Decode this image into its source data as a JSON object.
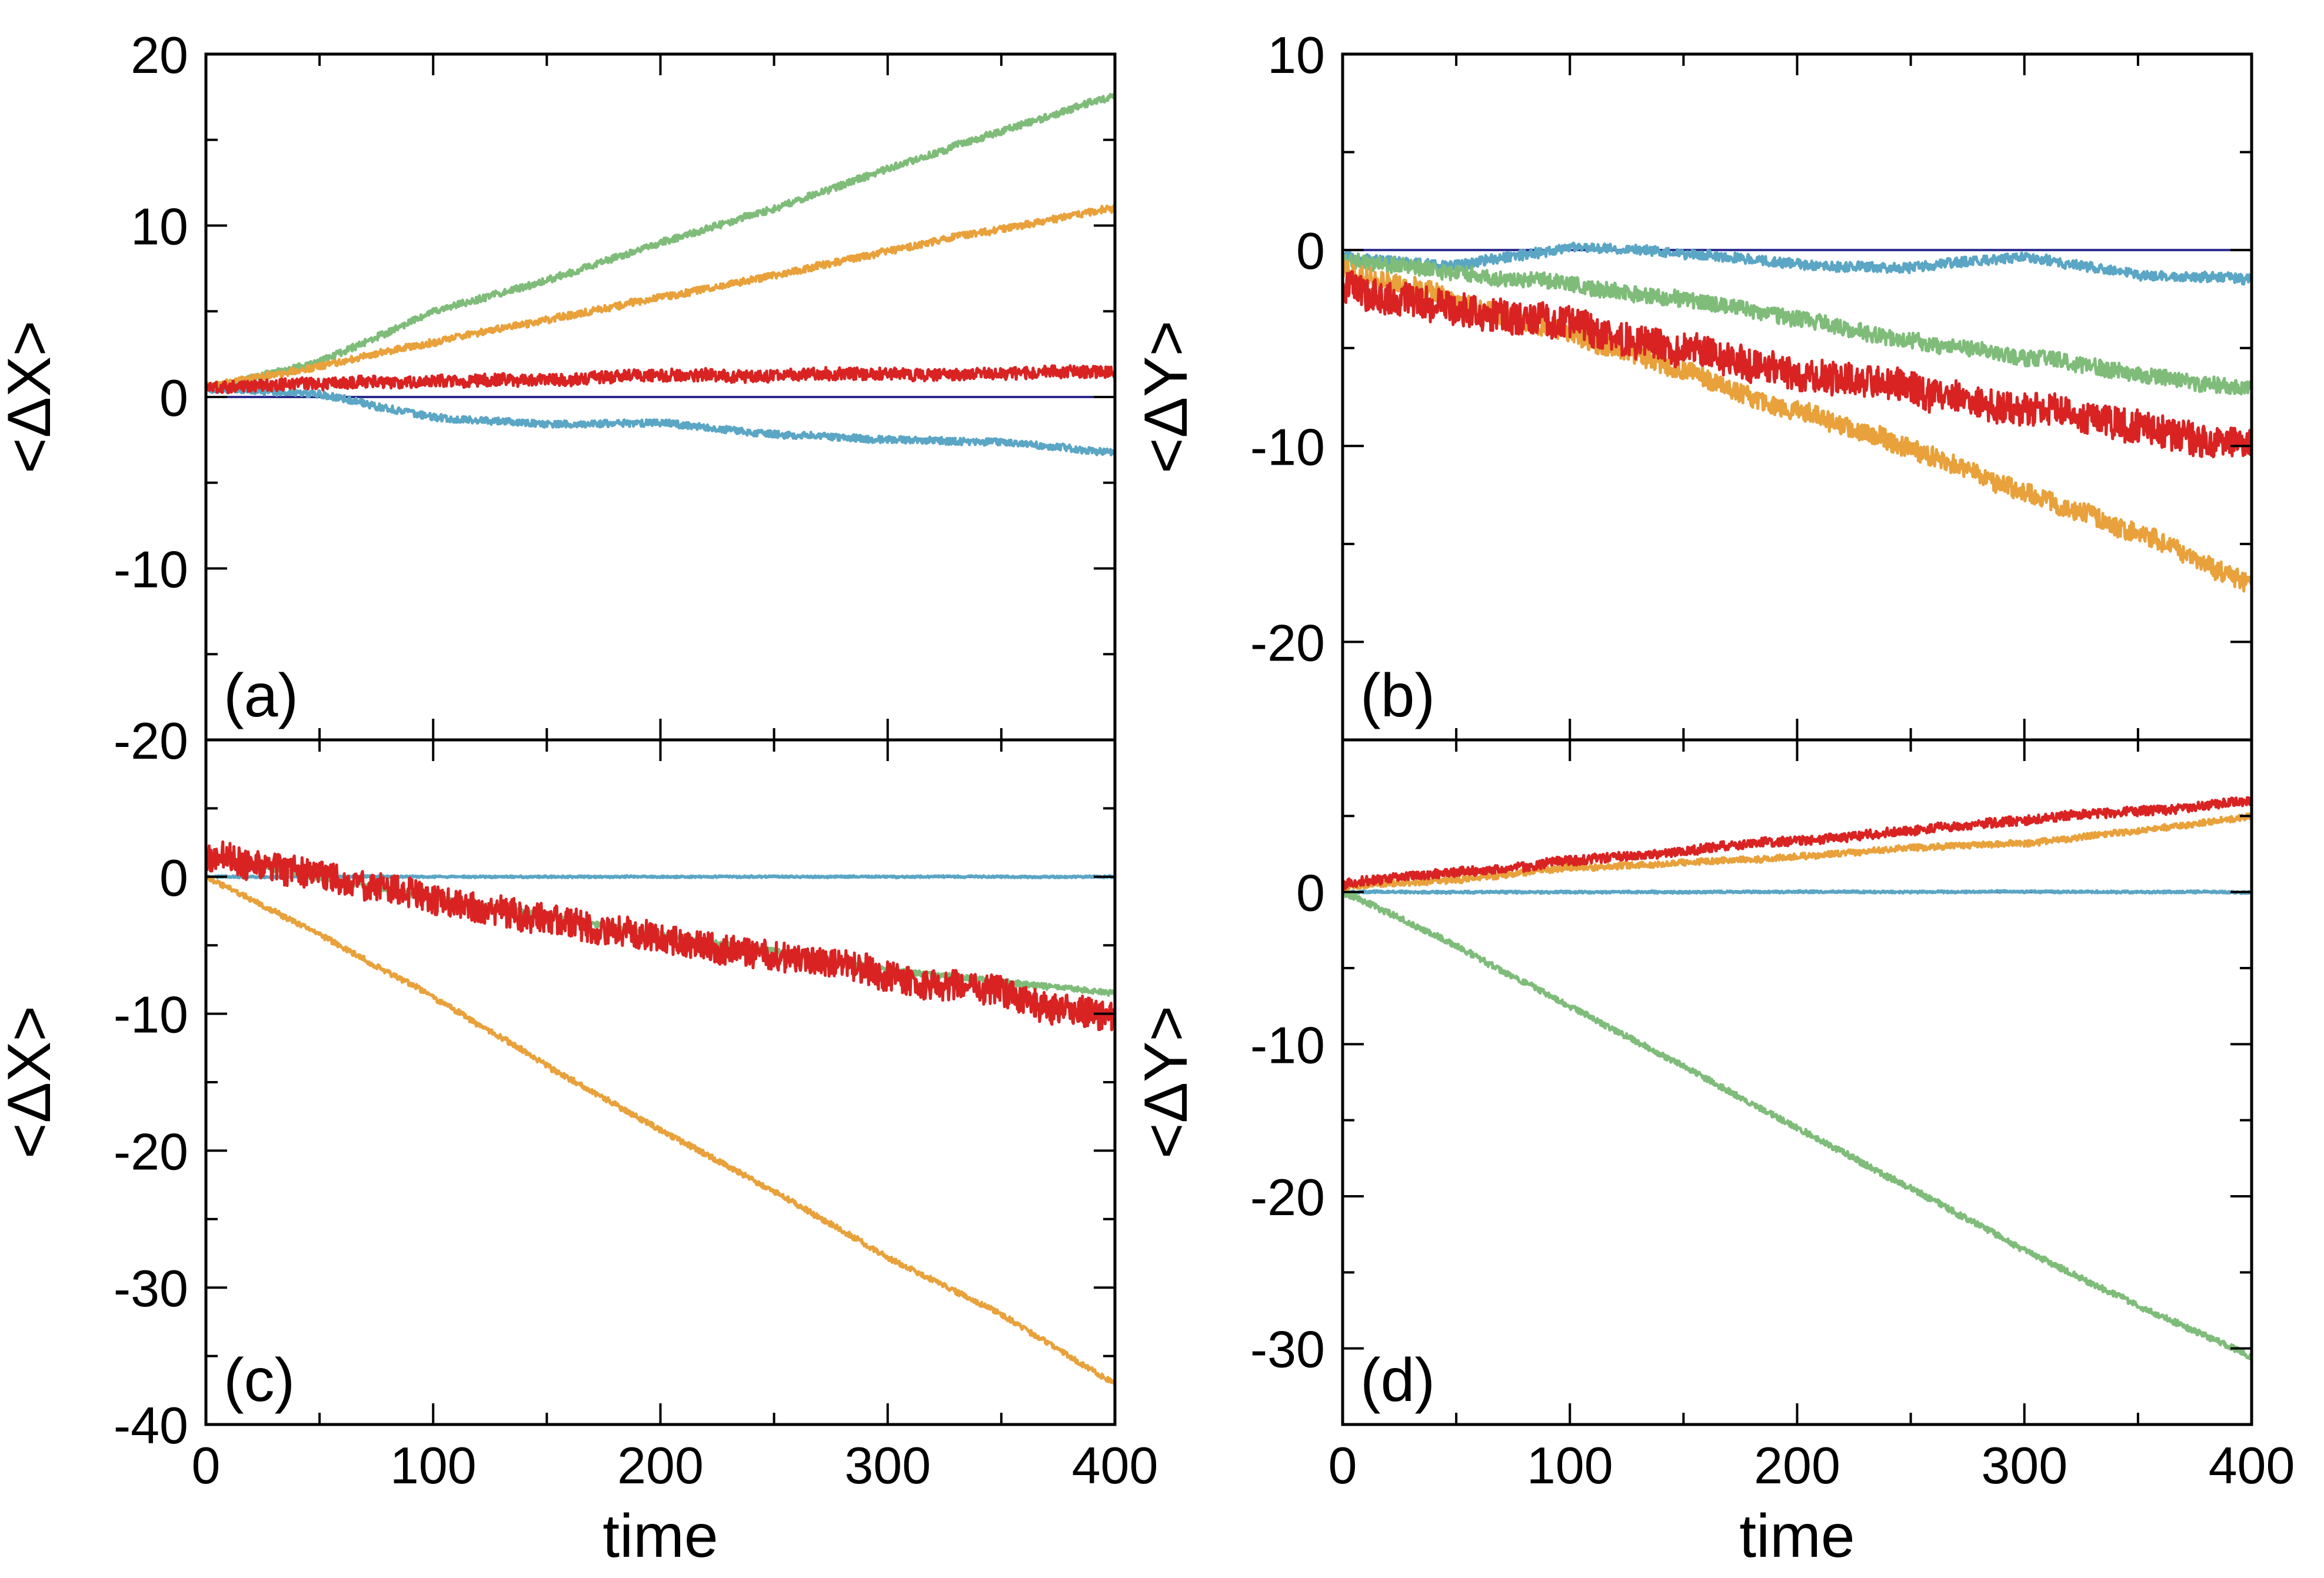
{
  "chart_data": [
    {
      "type": "line",
      "panel_label": "(a)",
      "xlabel": "",
      "ylabel": "<ΔX>",
      "xlim": [
        0,
        400
      ],
      "ylim": [
        -20,
        20
      ],
      "xticks": [
        "0",
        "100",
        "200",
        "300",
        "400"
      ],
      "yticks": [
        "-20",
        "-10",
        "0",
        "10",
        "20"
      ],
      "show_xtick_labels": false,
      "series": [
        {
          "name": "baseline",
          "color": "#2b2b8c",
          "noise": 0,
          "x": [
            0,
            400
          ],
          "y": [
            0,
            0
          ]
        },
        {
          "name": "blue",
          "color": "#5aa6c4",
          "noise": 0.4,
          "x": [
            0,
            50,
            100,
            150,
            200,
            250,
            300,
            350,
            400
          ],
          "y": [
            0.5,
            0.2,
            -1.2,
            -1.6,
            -1.5,
            -2.2,
            -2.5,
            -2.6,
            -3.2
          ]
        },
        {
          "name": "green",
          "color": "#7fbc7a",
          "noise": 0.4,
          "x": [
            0,
            50,
            100,
            150,
            200,
            250,
            300,
            350,
            400
          ],
          "y": [
            0.5,
            2.0,
            5.0,
            6.8,
            9.0,
            11.0,
            13.3,
            15.5,
            17.6
          ]
        },
        {
          "name": "orange",
          "color": "#e8a13b",
          "noise": 0.4,
          "x": [
            0,
            50,
            100,
            150,
            200,
            250,
            300,
            350,
            400
          ],
          "y": [
            0.6,
            1.8,
            3.2,
            4.5,
            5.8,
            7.1,
            8.5,
            9.8,
            11.0
          ]
        },
        {
          "name": "red",
          "color": "#d92323",
          "noise": 0.7,
          "x": [
            0,
            100,
            200,
            300,
            400
          ],
          "y": [
            0.6,
            0.9,
            1.2,
            1.4,
            1.5
          ]
        }
      ]
    },
    {
      "type": "line",
      "panel_label": "(b)",
      "xlabel": "",
      "ylabel": "<ΔY>",
      "xlim": [
        0,
        400
      ],
      "ylim": [
        -25,
        10
      ],
      "xticks": [
        "0",
        "100",
        "200",
        "300",
        "400"
      ],
      "yticks": [
        "-20",
        "-10",
        "0",
        "10"
      ],
      "show_xtick_labels": false,
      "series": [
        {
          "name": "baseline",
          "color": "#2b2b8c",
          "noise": 0,
          "x": [
            0,
            400
          ],
          "y": [
            0,
            0
          ]
        },
        {
          "name": "blue",
          "color": "#5aa6c4",
          "noise": 0.5,
          "x": [
            0,
            50,
            100,
            150,
            200,
            250,
            300,
            350,
            400
          ],
          "y": [
            -0.3,
            -0.8,
            0.1,
            -0.1,
            -0.8,
            -0.9,
            -0.3,
            -1.3,
            -1.5
          ]
        },
        {
          "name": "green",
          "color": "#7fbc7a",
          "noise": 0.8,
          "x": [
            0,
            50,
            100,
            150,
            200,
            250,
            300,
            350,
            400
          ],
          "y": [
            -0.5,
            -1.2,
            -1.8,
            -2.5,
            -3.5,
            -4.6,
            -5.4,
            -6.3,
            -7.2
          ]
        },
        {
          "name": "orange",
          "color": "#e8a13b",
          "noise": 1.0,
          "x": [
            0,
            50,
            100,
            150,
            200,
            250,
            300,
            350,
            400
          ],
          "y": [
            -1.0,
            -2.6,
            -4.3,
            -6.2,
            -8.3,
            -10.2,
            -12.3,
            -14.4,
            -17.2
          ]
        },
        {
          "name": "red",
          "color": "#d92323",
          "noise": 1.7,
          "x": [
            0,
            50,
            100,
            150,
            200,
            250,
            300,
            350,
            400
          ],
          "y": [
            -1.8,
            -3.0,
            -4.0,
            -5.0,
            -6.1,
            -7.1,
            -8.1,
            -9.0,
            -10.0
          ]
        }
      ]
    },
    {
      "type": "line",
      "panel_label": "(c)",
      "xlabel": "time",
      "ylabel": "<ΔX>",
      "xlim": [
        0,
        400
      ],
      "ylim": [
        -40,
        10
      ],
      "xticks": [
        "0",
        "100",
        "200",
        "300",
        "400"
      ],
      "yticks": [
        "-40",
        "-30",
        "-20",
        "-10",
        "0"
      ],
      "show_xtick_labels": true,
      "series": [
        {
          "name": "baseline",
          "color": "#2b2b8c",
          "noise": 0,
          "x": [
            0,
            400
          ],
          "y": [
            0,
            0
          ]
        },
        {
          "name": "blue",
          "color": "#5aa6c4",
          "noise": 0.15,
          "x": [
            0,
            400
          ],
          "y": [
            0,
            0
          ]
        },
        {
          "name": "green",
          "color": "#7fbc7a",
          "noise": 0.4,
          "x": [
            0,
            100,
            200,
            300,
            400
          ],
          "y": [
            1.5,
            -1.5,
            -4.2,
            -6.8,
            -8.5
          ]
        },
        {
          "name": "orange",
          "color": "#e8a13b",
          "noise": 0.4,
          "x": [
            0,
            50,
            100,
            150,
            200,
            250,
            300,
            350,
            400
          ],
          "y": [
            0,
            -4.2,
            -8.8,
            -13.8,
            -18.5,
            -23.0,
            -27.8,
            -32.0,
            -37.0
          ]
        },
        {
          "name": "red",
          "color": "#d92323",
          "noise": 2.2,
          "x": [
            0,
            50,
            100,
            150,
            200,
            250,
            300,
            350,
            400
          ],
          "y": [
            1.5,
            0.0,
            -1.7,
            -3.1,
            -4.5,
            -5.8,
            -7.2,
            -8.6,
            -10.2
          ]
        }
      ]
    },
    {
      "type": "line",
      "panel_label": "(d)",
      "xlabel": "time",
      "ylabel": "<ΔY>",
      "xlim": [
        0,
        400
      ],
      "ylim": [
        -35,
        10
      ],
      "xticks": [
        "0",
        "100",
        "200",
        "300",
        "400"
      ],
      "yticks": [
        "-30",
        "-20",
        "-10",
        "0"
      ],
      "show_xtick_labels": true,
      "series": [
        {
          "name": "baseline",
          "color": "#2b2b8c",
          "noise": 0,
          "x": [
            0,
            400
          ],
          "y": [
            0,
            0
          ]
        },
        {
          "name": "blue",
          "color": "#5aa6c4",
          "noise": 0.15,
          "x": [
            0,
            400
          ],
          "y": [
            0,
            0
          ]
        },
        {
          "name": "green",
          "color": "#7fbc7a",
          "noise": 0.4,
          "x": [
            0,
            50,
            100,
            150,
            200,
            250,
            300,
            350,
            400
          ],
          "y": [
            0,
            -3.5,
            -7.5,
            -11.5,
            -15.5,
            -19.5,
            -23.5,
            -27.2,
            -30.5
          ]
        },
        {
          "name": "orange",
          "color": "#e8a13b",
          "noise": 0.4,
          "x": [
            0,
            50,
            100,
            150,
            200,
            250,
            300,
            350,
            400
          ],
          "y": [
            0.3,
            0.8,
            1.6,
            1.9,
            2.3,
            2.9,
            3.2,
            4.0,
            5.0
          ]
        },
        {
          "name": "red",
          "color": "#d92323",
          "noise": 0.6,
          "x": [
            0,
            50,
            100,
            150,
            200,
            250,
            300,
            350,
            400
          ],
          "y": [
            0.5,
            1.3,
            2.1,
            2.7,
            3.4,
            4.1,
            4.7,
            5.3,
            6.0
          ]
        }
      ]
    }
  ]
}
